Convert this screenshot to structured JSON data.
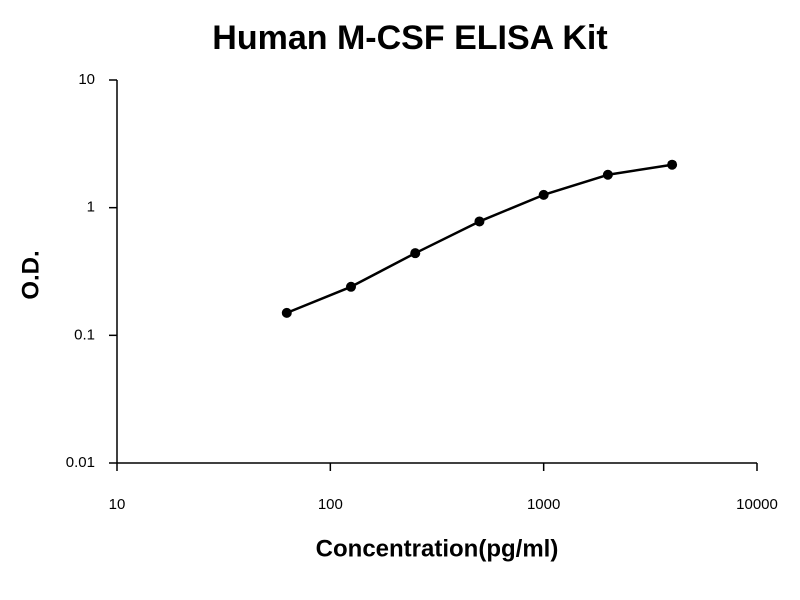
{
  "chart_data": {
    "type": "line",
    "title": "Human M-CSF ELISA Kit",
    "xlabel": "Concentration(pg/ml)",
    "ylabel": "O.D.",
    "x": [
      62.5,
      125,
      250,
      500,
      1000,
      2000,
      4000
    ],
    "series": [
      {
        "color": "#000000",
        "values": [
          0.15,
          0.24,
          0.44,
          0.78,
          1.26,
          1.81,
          2.17
        ]
      }
    ],
    "xscale": "log",
    "yscale": "log",
    "xlim": [
      10,
      10000
    ],
    "ylim": [
      0.01,
      10
    ],
    "xticks": [
      10,
      100,
      1000,
      10000
    ],
    "yticks": [
      0.01,
      0.1,
      1,
      10
    ],
    "grid": false,
    "markers": true
  }
}
